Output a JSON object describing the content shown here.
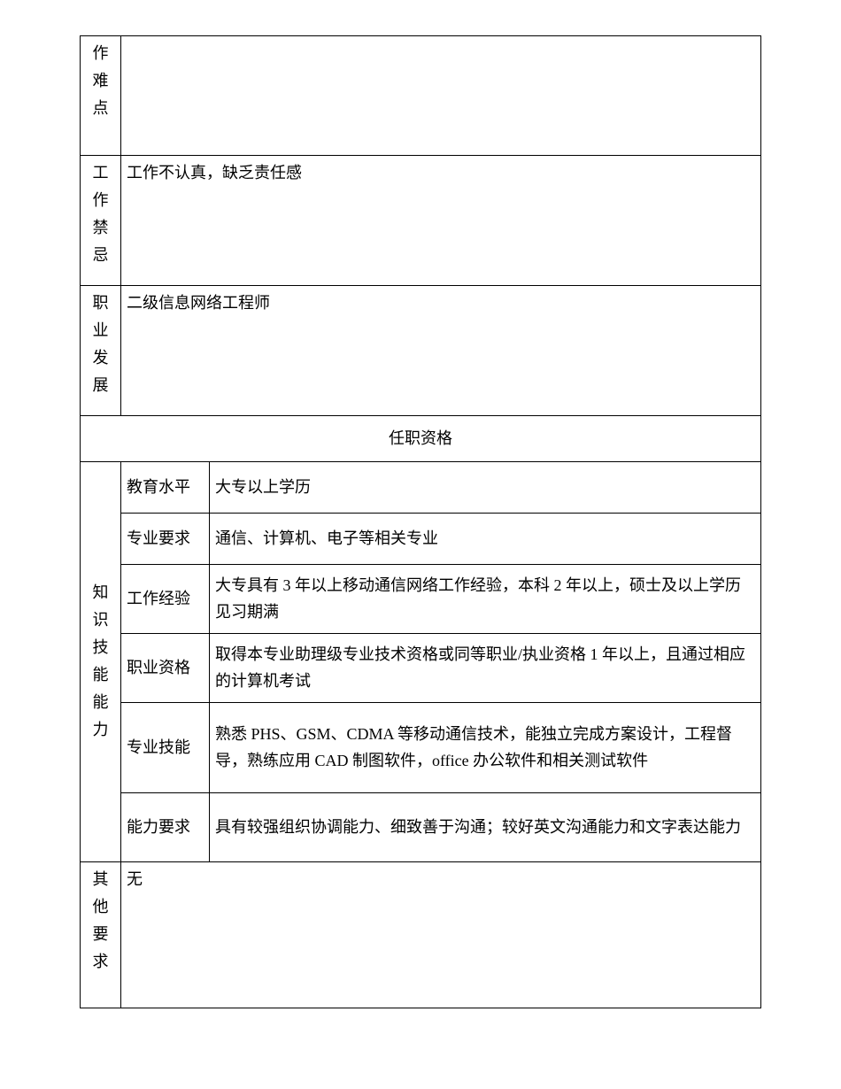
{
  "colors": {
    "border": "#000000",
    "text": "#000000",
    "background": "#ffffff"
  },
  "rows": {
    "difficulty": {
      "label": "作难点",
      "value": ""
    },
    "taboo": {
      "label": "工作禁忌",
      "value": "工作不认真，缺乏责任感"
    },
    "career": {
      "label": "职业发展",
      "value": "二级信息网络工程师"
    },
    "section_header": "任职资格",
    "kse": {
      "label": "知识技能能力",
      "items": {
        "education": {
          "label": "教育水平",
          "value": "大专以上学历"
        },
        "major": {
          "label": "专业要求",
          "value": "通信、计算机、电子等相关专业"
        },
        "experience": {
          "label": "工作经验",
          "value": "大专具有 3 年以上移动通信网络工作经验，本科 2 年以上，硕士及以上学历见习期满"
        },
        "qualification": {
          "label": "职业资格",
          "value": "取得本专业助理级专业技术资格或同等职业/执业资格 1 年以上，且通过相应的计算机考试"
        },
        "skills": {
          "label": "专业技能",
          "value": "熟悉 PHS、GSM、CDMA 等移动通信技术，能独立完成方案设计，工程督导，熟练应用 CAD 制图软件，office 办公软件和相关测试软件"
        },
        "capability": {
          "label": "能力要求",
          "value": "具有较强组织协调能力、细致善于沟通；较好英文沟通能力和文字表达能力"
        }
      }
    },
    "other": {
      "label": "其他要求",
      "value": "无"
    }
  }
}
